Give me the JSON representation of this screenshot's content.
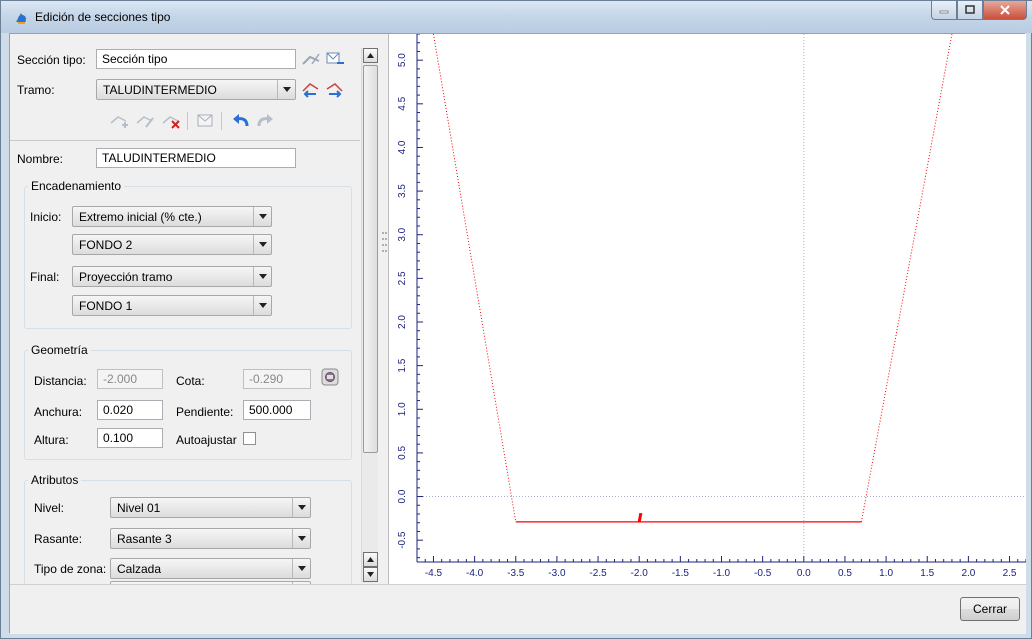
{
  "window": {
    "title": "Edición de secciones tipo"
  },
  "seccion": {
    "label": "Sección tipo:",
    "value": "Sección tipo"
  },
  "tramo": {
    "label": "Tramo:",
    "value": "TALUDINTERMEDIO"
  },
  "nombre": {
    "label": "Nombre:",
    "value": "TALUDINTERMEDIO"
  },
  "encadenamiento": {
    "title": "Encadenamiento",
    "inicio_label": "Inicio:",
    "inicio_value": "Extremo inicial  (% cte.)",
    "inicio_ref": "FONDO 2",
    "final_label": "Final:",
    "final_value": "Proyección tramo",
    "final_ref": "FONDO 1"
  },
  "geometria": {
    "title": "Geometría",
    "distancia_label": "Distancia:",
    "distancia_value": "-2.000",
    "cota_label": "Cota:",
    "cota_value": "-0.290",
    "anchura_label": "Anchura:",
    "anchura_value": "0.020",
    "pendiente_label": "Pendiente:",
    "pendiente_value": "500.000",
    "altura_label": "Altura:",
    "altura_value": "0.100",
    "autoajustar_label": "Autoajustar"
  },
  "atributos": {
    "title": "Atributos",
    "nivel_label": "Nivel:",
    "nivel_value": "Nivel 01",
    "rasante_label": "Rasante:",
    "rasante_value": "Rasante 3",
    "zona_label": "Tipo de zona:",
    "zona_value": "Calzada"
  },
  "buttons": {
    "cerrar": "Cerrar"
  },
  "colors": {
    "profile": "#ff0000",
    "axis": "#1a237e"
  },
  "chart_data": {
    "type": "line",
    "x_ticks": [
      "-4.5",
      "-4.0",
      "-3.5",
      "-3.0",
      "-2.5",
      "-2.0",
      "-1.5",
      "-1.0",
      "-0.5",
      "0.0",
      "0.5",
      "1.0",
      "1.5",
      "2.0",
      "2.5"
    ],
    "y_ticks": [
      "-0.5",
      "0.0",
      "0.5",
      "1.0",
      "1.5",
      "2.0",
      "2.5",
      "3.0",
      "3.5",
      "4.0",
      "4.5",
      "5.0"
    ],
    "xlim": [
      -4.7,
      2.7
    ],
    "ylim": [
      -0.75,
      5.3
    ],
    "series": [
      {
        "style": "dotted",
        "x": [
          -4.5,
          -3.5
        ],
        "y": [
          5.3,
          -0.29
        ]
      },
      {
        "style": "solid",
        "x": [
          -3.5,
          0.7
        ],
        "y": [
          -0.29,
          -0.29
        ]
      },
      {
        "style": "dotted",
        "x": [
          0.7,
          1.8
        ],
        "y": [
          -0.29,
          5.3
        ]
      },
      {
        "style": "solid-thick",
        "x": [
          -2.0,
          -1.98
        ],
        "y": [
          -0.29,
          -0.19
        ]
      }
    ],
    "grid": "origin-lines"
  }
}
